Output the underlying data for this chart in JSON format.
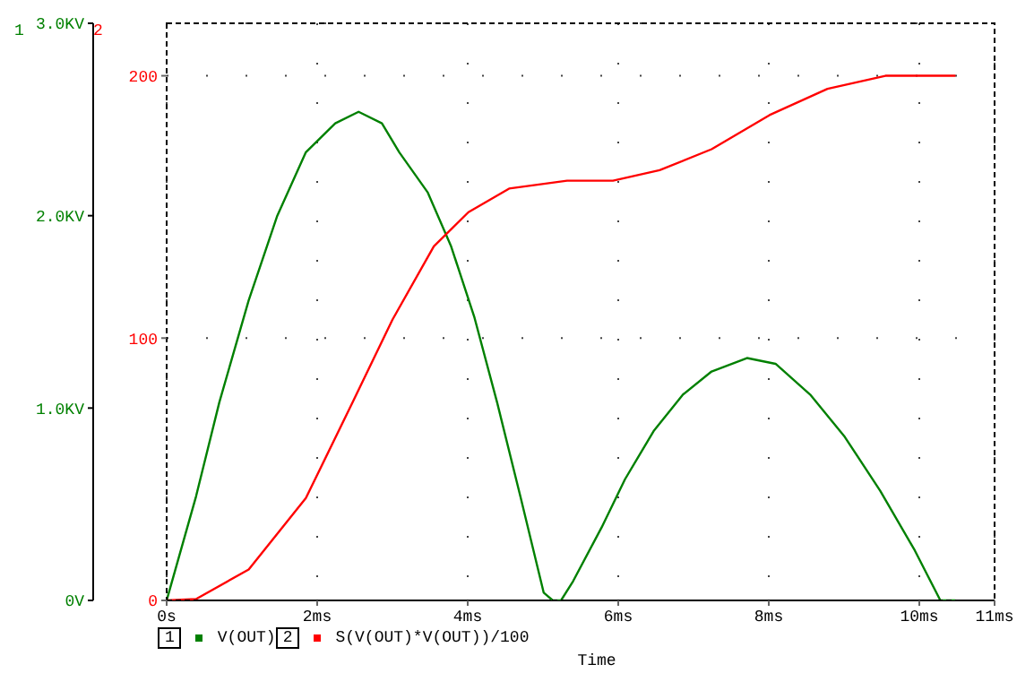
{
  "chart_data": {
    "type": "line",
    "xlabel": "Time",
    "xlim": [
      0,
      11
    ],
    "xticks": [
      {
        "value": 0,
        "label": "0s"
      },
      {
        "value": 2,
        "label": "2ms"
      },
      {
        "value": 4,
        "label": "4ms"
      },
      {
        "value": 6,
        "label": "6ms"
      },
      {
        "value": 8,
        "label": "8ms"
      },
      {
        "value": 10,
        "label": "10ms"
      },
      {
        "value": 11,
        "label": "11ms"
      }
    ],
    "ylim": [
      0,
      3
    ],
    "yticks": [
      {
        "value": 0,
        "label": "0V"
      },
      {
        "value": 1,
        "label": "1.0KV"
      },
      {
        "value": 2,
        "label": "2.0KV"
      },
      {
        "value": 3,
        "label": "3.0KV"
      }
    ],
    "y2lim": [
      0,
      220
    ],
    "y2ticks": [
      0,
      100,
      200
    ],
    "annotations": [
      "1",
      "2",
      "1",
      "2"
    ],
    "grid": true,
    "legend": "bottom",
    "marker": "none",
    "line_style": "solid",
    "series": [
      {
        "name": "V(OUT)",
        "color": "#008000",
        "x": [
          0,
          0.39,
          0.7,
          1.09,
          1.47,
          1.85,
          2.24,
          2.55,
          2.86,
          3.09,
          3.47,
          3.78,
          4.09,
          4.39,
          4.7,
          5.01,
          5.13,
          5.24,
          5.4,
          5.78,
          6.09,
          6.47,
          6.86,
          7.24,
          7.71,
          8.09,
          8.55,
          9.01,
          9.48,
          9.94,
          10.28,
          10.48
        ],
        "values": [
          0,
          0.54,
          1.03,
          1.56,
          2.0,
          2.33,
          2.48,
          2.54,
          2.48,
          2.33,
          2.12,
          1.84,
          1.47,
          1.03,
          0.54,
          0.04,
          0,
          0,
          0.1,
          0.38,
          0.63,
          0.88,
          1.07,
          1.19,
          1.26,
          1.23,
          1.07,
          0.85,
          0.57,
          0.26,
          0,
          0
        ]
      },
      {
        "name": "S(V(OUT)*V(OUT))/100",
        "color": "#ff0000",
        "axis": "y2",
        "x": [
          0,
          0.39,
          1.09,
          1.85,
          2.47,
          3.0,
          3.55,
          4.01,
          4.55,
          5.32,
          5.93,
          6.55,
          7.24,
          8.01,
          8.78,
          9.55,
          10.48
        ],
        "values": [
          0,
          0.5,
          11.8,
          39,
          75.5,
          107,
          135,
          148,
          157,
          160,
          160,
          164,
          172,
          185,
          195,
          200,
          200
        ]
      }
    ]
  }
}
